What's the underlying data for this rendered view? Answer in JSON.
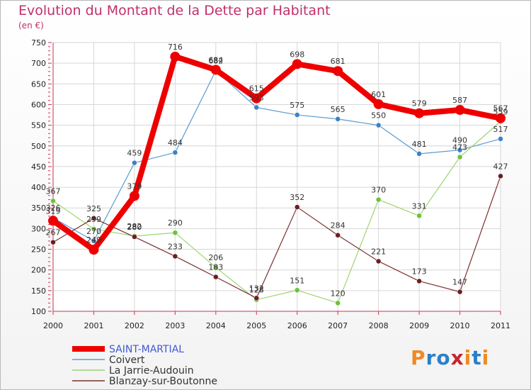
{
  "title": "Evolution du Montant de la Dette par Habitant",
  "subtitle": "(en €)",
  "brand": {
    "text": "Proxiti",
    "letters": [
      "P",
      "r",
      "o",
      "x",
      "i",
      "t",
      "i"
    ],
    "colors": [
      "#f08a22",
      "#2a80c8",
      "#2a80c8",
      "#c6262e",
      "#f08a22",
      "#2a80c8",
      "#f08a22"
    ]
  },
  "chart_data": {
    "type": "line",
    "title": "Evolution du Montant de la Dette par Habitant",
    "subtitle": "(en €)",
    "x": [
      "2000",
      "2001",
      "2002",
      "2003",
      "2004",
      "2005",
      "2006",
      "2007",
      "2008",
      "2009",
      "2010",
      "2011"
    ],
    "ylim": [
      100,
      750
    ],
    "yticks": [
      100,
      150,
      200,
      250,
      300,
      350,
      400,
      450,
      500,
      550,
      600,
      650,
      700,
      750
    ],
    "grid": true,
    "legend_position": "bottom-left",
    "series": [
      {
        "name": "Coivert",
        "color": "#5a9bd0",
        "marker": "#3d82c4",
        "width": 1.2,
        "values": [
          326,
          270,
          459,
          484,
          682,
          593,
          575,
          565,
          550,
          481,
          490,
          517
        ],
        "labels": [
          "326",
          "270",
          "459",
          "484",
          "682",
          "593",
          "575",
          "565",
          "550",
          "481",
          "490",
          "517"
        ]
      },
      {
        "name": "La Jarrie-Audouin",
        "color": "#9ed470",
        "marker": "#6cc23a",
        "width": 1.2,
        "values": [
          367,
          299,
          282,
          290,
          206,
          128,
          151,
          120,
          370,
          331,
          473,
          559
        ],
        "labels": [
          "367",
          "299",
          "282",
          "290",
          "206",
          "128",
          "151",
          "120",
          "370",
          "331",
          "473",
          "559"
        ]
      },
      {
        "name": "Blanzay-sur-Boutonne",
        "color": "#7a3030",
        "marker": "#6a1f1f",
        "width": 1.2,
        "values": [
          267,
          325,
          280,
          233,
          183,
          132,
          352,
          284,
          221,
          173,
          147,
          427
        ],
        "labels": [
          "267",
          "325",
          "280",
          "233",
          "183",
          "132",
          "352",
          "284",
          "221",
          "173",
          "147",
          "427"
        ]
      },
      {
        "name": "SAINT-MARTIAL",
        "color": "#ee0000",
        "marker": "#ee0000",
        "width": 8,
        "values": [
          319,
          249,
          379,
          716,
          684,
          615,
          698,
          681,
          601,
          579,
          587,
          567
        ],
        "labels": [
          "319",
          "249",
          "379",
          "716",
          "684",
          "615",
          "698",
          "681",
          "601",
          "579",
          "587",
          "567"
        ]
      }
    ]
  }
}
